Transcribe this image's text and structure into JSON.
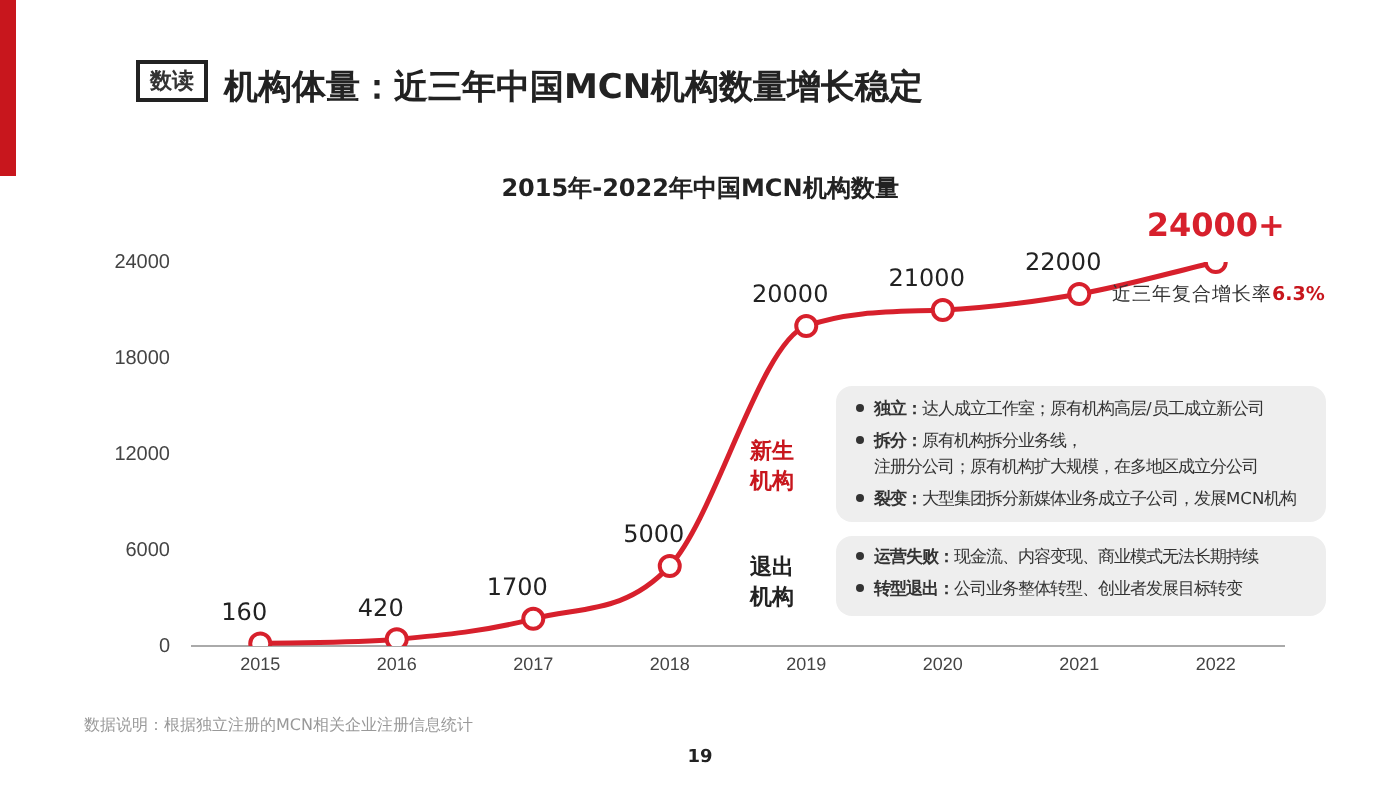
{
  "chart_data": {
    "type": "line",
    "title": "机构体量：近三年中国MCN机构数量增长稳定",
    "subtitle": "2015年-2022年中国MCN机构数量",
    "categories": [
      "2015",
      "2016",
      "2017",
      "2018",
      "2019",
      "2020",
      "2021",
      "2022"
    ],
    "series": [
      {
        "color": "#d7202c",
        "values": [
          160,
          420,
          1700,
          5000,
          20000,
          21000,
          22000,
          24000
        ],
        "value_labels": [
          "160",
          "420",
          "1700",
          "5000",
          "20000",
          "21000",
          "22000",
          "24000+"
        ]
      }
    ],
    "ylim": [
      0,
      24000
    ],
    "yticks": [
      0,
      6000,
      12000,
      18000,
      24000
    ],
    "grid": false,
    "legend": false,
    "marker": "circle",
    "line_style": "solid",
    "annotations": [
      "数读",
      "新生机构",
      "独立：达人成立工作室；原有机构高层/员工成立新公司",
      "拆分：原有机构拆分业务线，注册分公司；原有机构扩大规模，在多地区成立分公司",
      "裂变：大型集团拆分新媒体业务成立子公司，发展MCN机构",
      "退出机构",
      "运营失败：现金流、内容变现、商业模式无法长期持续",
      "转型退出：公司业务整体转型、创业者发展目标转变",
      "近三年复合增长率6.3%",
      "数据说明：根据独立注册的MCN相关企业注册信息统计",
      "19"
    ]
  }
}
